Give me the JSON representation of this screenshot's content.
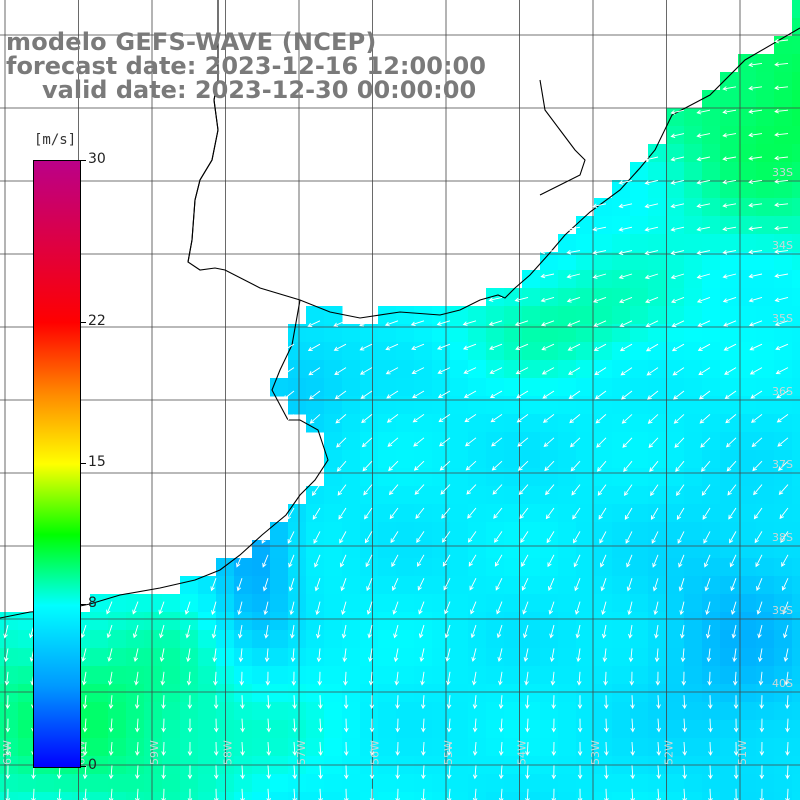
{
  "title": {
    "line1": "modelo GEFS-WAVE (NCEP)",
    "line2": "forecast date: 2023-12-16 12:00:00",
    "line3": "valid date: 2023-12-30 00:00:00"
  },
  "colorbar": {
    "unit": "[m/s]",
    "ticks": [
      "30",
      "22",
      "15",
      "8",
      "0"
    ],
    "tick_values": [
      30,
      22,
      15,
      8,
      0
    ],
    "range": [
      0,
      30
    ],
    "stops": [
      {
        "value": 0,
        "color": "#0000ff"
      },
      {
        "value": 4,
        "color": "#0099ff"
      },
      {
        "value": 8,
        "color": "#00ffff"
      },
      {
        "value": 11.5,
        "color": "#00ff00"
      },
      {
        "value": 15,
        "color": "#ffff00"
      },
      {
        "value": 18.5,
        "color": "#ff8800"
      },
      {
        "value": 22,
        "color": "#ff0000"
      },
      {
        "value": 30,
        "color": "#bb0088"
      }
    ]
  },
  "map_labels": {
    "lon": [
      "61W",
      "60W",
      "59W",
      "58W",
      "57W",
      "56W",
      "55W",
      "54W",
      "53W",
      "52W",
      "51W"
    ],
    "lat": [
      "33S",
      "34S",
      "35S",
      "36S",
      "37S",
      "38S",
      "39S",
      "40S"
    ]
  },
  "colors": {
    "grid": "#444444",
    "coast": "#000000",
    "land": "#ffffff",
    "arrow": "#ffffff",
    "title": "#7a7a7a"
  }
}
